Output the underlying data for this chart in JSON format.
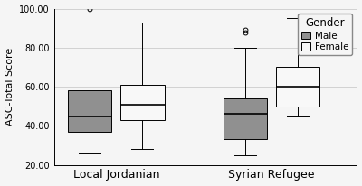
{
  "title": "",
  "ylabel": "ASC-Total Score",
  "ylim": [
    20,
    100
  ],
  "yticks": [
    20.0,
    40.0,
    60.0,
    80.0,
    100.0
  ],
  "group_labels": [
    "Local Jordanian",
    "Syrian Refugee"
  ],
  "boxes": {
    "local_male": {
      "whislo": 26,
      "q1": 37,
      "med": 45,
      "q3": 58,
      "whishi": 93,
      "fliers": [
        100
      ]
    },
    "local_female": {
      "whislo": 28,
      "q1": 43,
      "med": 51,
      "q3": 61,
      "whishi": 93,
      "fliers": []
    },
    "syrian_male": {
      "whislo": 25,
      "q1": 33,
      "med": 46,
      "q3": 54,
      "whishi": 80,
      "fliers": [
        88,
        89
      ]
    },
    "syrian_female": {
      "whislo": 45,
      "q1": 50,
      "med": 60,
      "q3": 70,
      "whishi": 95,
      "fliers": []
    }
  },
  "male_color": "#909090",
  "female_color": "#f8f8f8",
  "box_width": 0.28,
  "offsets": [
    -0.17,
    0.17
  ],
  "group_centers": [
    1.0,
    2.0
  ],
  "xlim": [
    0.6,
    2.55
  ],
  "legend_title": "Gender",
  "legend_fontsize": 7.5,
  "legend_title_fontsize": 8.5,
  "background_color": "#f5f5f5",
  "grid_color": "#cccccc",
  "ylabel_fontsize": 8,
  "tick_fontsize": 7,
  "xtick_fontsize": 9
}
